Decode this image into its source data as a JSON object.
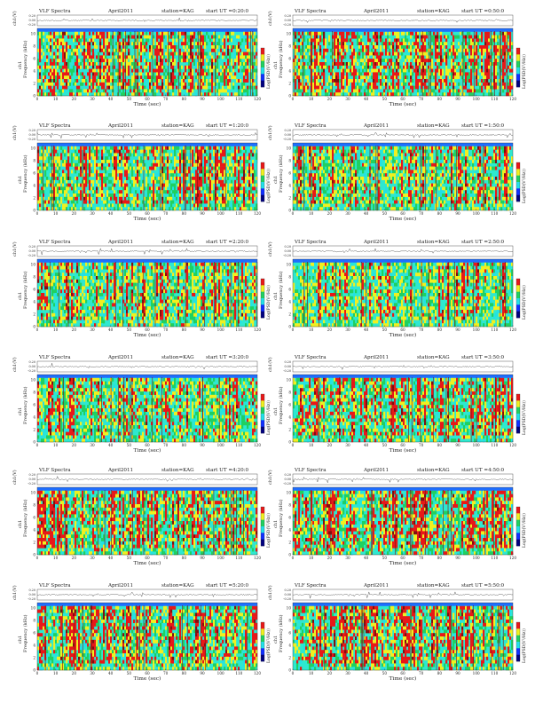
{
  "chart_data": [
    {
      "type": "heatmap",
      "title_left": "VLF Spectra",
      "date": "April2011",
      "station": "station=KAG",
      "start": "start UT =0:20:0",
      "wave_ylabel": "ch1(V)",
      "wave_yticks": [
        "0.20",
        "0.00",
        "-0.20"
      ],
      "channel": "ch1",
      "ylabel": "Frequency (kHz)",
      "yticks": [
        "0",
        "2",
        "4",
        "6",
        "8",
        "10"
      ],
      "ylim": [
        0,
        10
      ],
      "xlabel": "Time (sec)",
      "xticks": [
        "0",
        "10",
        "20",
        "30",
        "40",
        "50",
        "60",
        "70",
        "80",
        "90",
        "100",
        "110",
        "120"
      ],
      "xlim": [
        0,
        120
      ],
      "colorbar_label": "Log(PSD(V²/Hz))",
      "intensity": 0.75
    },
    {
      "type": "heatmap",
      "title_left": "VLF Spectra",
      "date": "April2011",
      "station": "station=KAG",
      "start": "start UT =0:50:0",
      "wave_ylabel": "ch1(V)",
      "wave_yticks": [
        "0.20",
        "0.00",
        "-0.20"
      ],
      "channel": "ch1",
      "ylabel": "Frequency (kHz)",
      "yticks": [
        "0",
        "2",
        "4",
        "6",
        "8",
        "10"
      ],
      "ylim": [
        0,
        10
      ],
      "xlabel": "Time (sec)",
      "xticks": [
        "0",
        "10",
        "20",
        "30",
        "40",
        "50",
        "60",
        "70",
        "80",
        "90",
        "100",
        "110",
        "120"
      ],
      "xlim": [
        0,
        120
      ],
      "colorbar_label": "Log(PSD(V²/Hz))",
      "intensity": 0.8
    },
    {
      "type": "heatmap",
      "title_left": "VLF Spectra",
      "date": "April2011",
      "station": "station=KAG",
      "start": "start UT =1:20:0",
      "wave_ylabel": "ch1(V)",
      "wave_yticks": [
        "0.20",
        "0.00",
        "-0.20"
      ],
      "channel": "ch1",
      "ylabel": "Frequency (kHz)",
      "yticks": [
        "0",
        "2",
        "4",
        "6",
        "8",
        "10"
      ],
      "ylim": [
        0,
        10
      ],
      "xlabel": "Time (sec)",
      "xticks": [
        "0",
        "10",
        "20",
        "30",
        "40",
        "50",
        "60",
        "70",
        "80",
        "90",
        "100",
        "110",
        "120"
      ],
      "xlim": [
        0,
        120
      ],
      "colorbar_label": "Log(PSD(V²/Hz))",
      "intensity": 0.45
    },
    {
      "type": "heatmap",
      "title_left": "VLF Spectra",
      "date": "April2011",
      "station": "station=KAG",
      "start": "start UT =1:50:0",
      "wave_ylabel": "ch1(V)",
      "wave_yticks": [
        "0.20",
        "0.00",
        "-0.20"
      ],
      "channel": "ch1",
      "ylabel": "Frequency (kHz)",
      "yticks": [
        "0",
        "2",
        "4",
        "6",
        "8",
        "10"
      ],
      "ylim": [
        0,
        10
      ],
      "xlabel": "Time (sec)",
      "xticks": [
        "0",
        "10",
        "20",
        "30",
        "40",
        "50",
        "60",
        "70",
        "80",
        "90",
        "100",
        "110",
        "120"
      ],
      "xlim": [
        0,
        120
      ],
      "colorbar_label": "Log(PSD(V²/Hz))",
      "intensity": 0.45
    },
    {
      "type": "heatmap",
      "title_left": "VLF Spectra",
      "date": "April2011",
      "station": "station=KAG",
      "start": "start UT =2:20:0",
      "wave_ylabel": "ch1(V)",
      "wave_yticks": [
        "0.20",
        "0.00",
        "-0.20"
      ],
      "channel": "ch1",
      "ylabel": "Frequency (kHz)",
      "yticks": [
        "0",
        "2",
        "4",
        "6",
        "8",
        "10"
      ],
      "ylim": [
        0,
        10
      ],
      "xlabel": "Time (sec)",
      "xticks": [
        "0",
        "10",
        "20",
        "30",
        "40",
        "50",
        "60",
        "70",
        "80",
        "90",
        "100",
        "110",
        "120"
      ],
      "xlim": [
        0,
        120
      ],
      "colorbar_label": "Log(PSD(V²/Hz))",
      "intensity": 0.3
    },
    {
      "type": "heatmap",
      "title_left": "VLF Spectra",
      "date": "April2011",
      "station": "station=KAG",
      "start": "start UT =2:50:0",
      "wave_ylabel": "ch1(V)",
      "wave_yticks": [
        "0.20",
        "0.00",
        "-0.20"
      ],
      "channel": "ch1",
      "ylabel": "Frequency (kHz)",
      "yticks": [
        "0",
        "2",
        "4",
        "6",
        "8",
        "10"
      ],
      "ylim": [
        0,
        10
      ],
      "xlabel": "Time (sec)",
      "xticks": [
        "0",
        "10",
        "20",
        "30",
        "40",
        "50",
        "60",
        "70",
        "80",
        "90",
        "100",
        "110",
        "120"
      ],
      "xlim": [
        0,
        120
      ],
      "colorbar_label": "Log(PSD(V²/Hz))",
      "intensity": 0.3
    },
    {
      "type": "heatmap",
      "title_left": "VLF Spectra",
      "date": "April2011",
      "station": "station=KAG",
      "start": "start UT =3:20:0",
      "wave_ylabel": "ch1(V)",
      "wave_yticks": [
        "0.20",
        "0.00",
        "-0.20"
      ],
      "channel": "ch1",
      "ylabel": "Frequency (kHz)",
      "yticks": [
        "0",
        "2",
        "4",
        "6",
        "8",
        "10"
      ],
      "ylim": [
        0,
        10
      ],
      "xlabel": "Time (sec)",
      "xticks": [
        "0",
        "10",
        "20",
        "30",
        "40",
        "50",
        "60",
        "70",
        "80",
        "90",
        "100",
        "110",
        "120"
      ],
      "xlim": [
        0,
        120
      ],
      "colorbar_label": "Log(PSD(V²/Hz))",
      "intensity": 0.5
    },
    {
      "type": "heatmap",
      "title_left": "VLF Spectra",
      "date": "April2011",
      "station": "station=KAG",
      "start": "start UT =3:50:0",
      "wave_ylabel": "ch1(V)",
      "wave_yticks": [
        "0.20",
        "0.00",
        "-0.20"
      ],
      "channel": "ch1",
      "ylabel": "Frequency (kHz)",
      "yticks": [
        "0",
        "2",
        "4",
        "6",
        "8",
        "10"
      ],
      "ylim": [
        0,
        10
      ],
      "xlabel": "Time (sec)",
      "xticks": [
        "0",
        "10",
        "20",
        "30",
        "40",
        "50",
        "60",
        "70",
        "80",
        "90",
        "100",
        "110",
        "120"
      ],
      "xlim": [
        0,
        120
      ],
      "colorbar_label": "Log(PSD(V²/Hz))",
      "intensity": 0.65
    },
    {
      "type": "heatmap",
      "title_left": "VLF Spectra",
      "date": "April2011",
      "station": "station=KAG",
      "start": "start UT =4:20:0",
      "wave_ylabel": "ch1(V)",
      "wave_yticks": [
        "0.20",
        "0.00",
        "-0.20"
      ],
      "channel": "ch1",
      "ylabel": "Frequency (kHz)",
      "yticks": [
        "0",
        "2",
        "4",
        "6",
        "8",
        "10"
      ],
      "ylim": [
        0,
        10
      ],
      "xlabel": "Time (sec)",
      "xticks": [
        "0",
        "10",
        "20",
        "30",
        "40",
        "50",
        "60",
        "70",
        "80",
        "90",
        "100",
        "110",
        "120"
      ],
      "xlim": [
        0,
        120
      ],
      "colorbar_label": "Log(PSD(V²/Hz))",
      "intensity": 0.85
    },
    {
      "type": "heatmap",
      "title_left": "VLF Spectra",
      "date": "April2011",
      "station": "station=KAG",
      "start": "start UT =4:50:0",
      "wave_ylabel": "ch1(V)",
      "wave_yticks": [
        "0.20",
        "0.00",
        "-0.20"
      ],
      "channel": "ch1",
      "ylabel": "Frequency (kHz)",
      "yticks": [
        "0",
        "2",
        "4",
        "6",
        "8",
        "10"
      ],
      "ylim": [
        0,
        10
      ],
      "xlabel": "Time (sec)",
      "xticks": [
        "0",
        "10",
        "20",
        "30",
        "40",
        "50",
        "60",
        "70",
        "80",
        "90",
        "100",
        "110",
        "120"
      ],
      "xlim": [
        0,
        120
      ],
      "colorbar_label": "Log(PSD(V²/Hz))",
      "intensity": 0.85
    },
    {
      "type": "heatmap",
      "title_left": "VLF Spectra",
      "date": "April2011",
      "station": "station=KAG",
      "start": "start UT =5:20:0",
      "wave_ylabel": "ch1(V)",
      "wave_yticks": [
        "0.20",
        "0.00",
        "-0.20"
      ],
      "channel": "ch1",
      "ylabel": "Frequency (kHz)",
      "yticks": [
        "0",
        "2",
        "4",
        "6",
        "8",
        "10"
      ],
      "ylim": [
        0,
        10
      ],
      "xlabel": "Time (sec)",
      "xticks": [
        "0",
        "10",
        "20",
        "30",
        "40",
        "50",
        "60",
        "70",
        "80",
        "90",
        "100",
        "110",
        "120"
      ],
      "xlim": [
        0,
        120
      ],
      "colorbar_label": "Log(PSD(V²/Hz))",
      "intensity": 0.85
    },
    {
      "type": "heatmap",
      "title_left": "VLF Spectra",
      "date": "April2011",
      "station": "station=KAG",
      "start": "start UT =5:50:0",
      "wave_ylabel": "ch1(V)",
      "wave_yticks": [
        "0.20",
        "0.00",
        "-0.20"
      ],
      "channel": "ch1",
      "ylabel": "Frequency (kHz)",
      "yticks": [
        "0",
        "2",
        "4",
        "6",
        "8",
        "10"
      ],
      "ylim": [
        0,
        10
      ],
      "xlabel": "Time (sec)",
      "xticks": [
        "0",
        "10",
        "20",
        "30",
        "40",
        "50",
        "60",
        "70",
        "80",
        "90",
        "100",
        "110",
        "120"
      ],
      "xlim": [
        0,
        120
      ],
      "colorbar_label": "Log(PSD(V²/Hz))",
      "intensity": 0.85
    }
  ],
  "colors": {
    "background": "#2ee8d0",
    "cyan": "#22e0e8",
    "green": "#20d060",
    "yellow": "#f0f020",
    "red": "#e81818",
    "darkred": "#801010",
    "blue": "#1030ff",
    "bluestrip": "#1e6eff"
  }
}
